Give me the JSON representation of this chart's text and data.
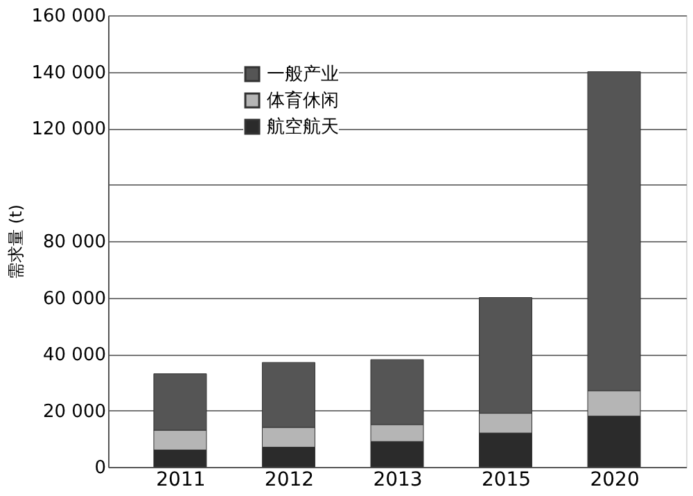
{
  "chart_data": {
    "type": "bar",
    "stacked": true,
    "ylabel": "需求量 (t)",
    "categories": [
      "2011",
      "2012",
      "2013",
      "2015",
      "2020"
    ],
    "series": [
      {
        "name": "航空航天",
        "color": "#2b2b2b",
        "values": [
          6000,
          7000,
          9000,
          12000,
          18000
        ]
      },
      {
        "name": "体育休闲",
        "color": "#b5b5b5",
        "values": [
          7000,
          7000,
          6000,
          7000,
          9000
        ]
      },
      {
        "name": "一般产业",
        "color": "#555555",
        "values": [
          20000,
          23000,
          23000,
          41000,
          113000
        ]
      }
    ],
    "ylim": [
      0,
      160000
    ],
    "yticks": [
      {
        "value": 0,
        "label": "0"
      },
      {
        "value": 20000,
        "label": "20 000"
      },
      {
        "value": 40000,
        "label": "40 000"
      },
      {
        "value": 60000,
        "label": "60 000"
      },
      {
        "value": 80000,
        "label": "80 000"
      },
      {
        "value": 100000,
        "label": null
      },
      {
        "value": 120000,
        "label": "120 000"
      },
      {
        "value": 140000,
        "label": "140 000"
      },
      {
        "value": 160000,
        "label": "160 000"
      }
    ],
    "grid": "y",
    "legend": "top"
  }
}
